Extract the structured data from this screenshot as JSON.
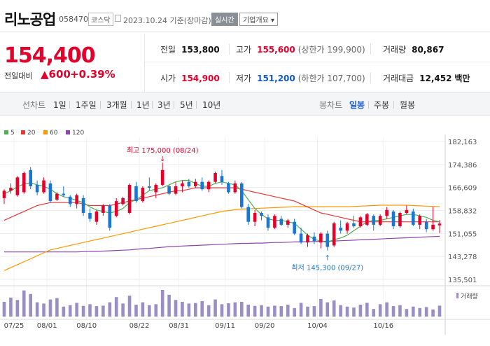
{
  "header": {
    "stock_name": "리노공업",
    "stock_code": "058470",
    "market": "코스닥",
    "date_text": "2023.10.24  기준(장마감)",
    "realtime_label": "실시간",
    "company_label": "기업개요 ▾"
  },
  "price": {
    "current": "154,400",
    "prev_label": "전일대비",
    "change": "▲600",
    "rate": "+0.39%"
  },
  "stats": {
    "prev_close": {
      "label": "전일",
      "value": "153,800"
    },
    "high": {
      "label": "고가",
      "value": "155,600",
      "sub": "(상한가 199,900)"
    },
    "volume": {
      "label": "거래량",
      "value": "80,867"
    },
    "open": {
      "label": "시가",
      "value": "154,900"
    },
    "low": {
      "label": "저가",
      "value": "151,200",
      "sub": "(하한가 107,700)"
    },
    "amount": {
      "label": "거래대금",
      "value": "12,452",
      "unit": "백만"
    }
  },
  "tabs": {
    "line_chart_label": "선차트",
    "periods": [
      "1일",
      "1주일",
      "3개월",
      "1년",
      "3년",
      "5년",
      "10년"
    ],
    "candle_chart_label": "봉차트",
    "candle_periods": [
      "일봉",
      "주봉",
      "월봉"
    ],
    "active_candle": "일봉"
  },
  "colors": {
    "up": "#e4002b",
    "down": "#1976d2",
    "ma5": "#4caf50",
    "ma20": "#e53935",
    "ma60": "#ff9800",
    "ma120": "#8e44ad",
    "volume": "#9b8ec4"
  },
  "chart_data": {
    "type": "candlestick",
    "legend": [
      {
        "name": "5",
        "color": "#4caf50"
      },
      {
        "name": "20",
        "color": "#e53935"
      },
      {
        "name": "60",
        "color": "#ff9800"
      },
      {
        "name": "120",
        "color": "#8e44ad"
      }
    ],
    "y_ticks": [
      "182,163",
      "174,386",
      "166,609",
      "158,832",
      "151,055",
      "143,278",
      "135,501"
    ],
    "ylim": [
      135501,
      182163
    ],
    "x_ticks": [
      "07/25",
      "08/01",
      "08/10",
      "08/22",
      "08/31",
      "09/11",
      "09/20",
      "10/04",
      "10/16"
    ],
    "high_annotation": "최고 175,000 (08/24)",
    "low_annotation": "최저 145,300 (09/27)",
    "volume_legend": "거래량",
    "candles": [
      [
        163000,
        166000,
        161000,
        165500
      ],
      [
        165500,
        168000,
        164500,
        166500
      ],
      [
        164000,
        170500,
        163500,
        170000
      ],
      [
        165000,
        172000,
        164500,
        171500
      ],
      [
        172500,
        173500,
        166000,
        167000
      ],
      [
        167500,
        169000,
        164000,
        165000
      ],
      [
        165000,
        170000,
        164500,
        169000
      ],
      [
        168000,
        169000,
        161500,
        162000
      ],
      [
        162500,
        165000,
        162000,
        164500
      ],
      [
        164500,
        167000,
        163500,
        164000
      ],
      [
        163500,
        164000,
        160000,
        161000
      ],
      [
        161000,
        164500,
        159500,
        164000
      ],
      [
        163000,
        164000,
        157000,
        158000
      ],
      [
        158000,
        159500,
        155000,
        156000
      ],
      [
        155000,
        159000,
        154000,
        158500
      ],
      [
        158000,
        161000,
        157000,
        160500
      ],
      [
        160500,
        161000,
        152000,
        153000
      ],
      [
        157000,
        163000,
        156500,
        162000
      ],
      [
        161000,
        163500,
        160500,
        163000
      ],
      [
        158000,
        168000,
        157500,
        167500
      ],
      [
        167000,
        168500,
        161500,
        162000
      ],
      [
        162000,
        167000,
        161500,
        166500
      ],
      [
        167000,
        170000,
        165500,
        166500
      ],
      [
        165000,
        168000,
        163000,
        167500
      ],
      [
        167500,
        175000,
        167000,
        172500
      ],
      [
        167000,
        167500,
        164000,
        164500
      ],
      [
        164500,
        168500,
        164000,
        167000
      ],
      [
        167000,
        169000,
        165000,
        168000
      ],
      [
        168500,
        169500,
        166500,
        167000
      ],
      [
        167000,
        169500,
        166500,
        168500
      ],
      [
        168500,
        170000,
        165500,
        166000
      ],
      [
        166000,
        169000,
        165000,
        168500
      ],
      [
        168500,
        172000,
        168000,
        171500
      ],
      [
        170500,
        172500,
        167500,
        168500
      ],
      [
        168000,
        168500,
        164500,
        165000
      ],
      [
        165000,
        169000,
        164500,
        168000
      ],
      [
        168000,
        168500,
        159500,
        160000
      ],
      [
        160000,
        161000,
        154000,
        155000
      ],
      [
        155000,
        159000,
        153500,
        158000
      ],
      [
        158000,
        158500,
        155500,
        157000
      ],
      [
        156500,
        157500,
        152000,
        153000
      ],
      [
        153000,
        157500,
        152500,
        157000
      ],
      [
        156000,
        157000,
        153500,
        154000
      ],
      [
        154000,
        156000,
        153000,
        155500
      ],
      [
        155000,
        156000,
        150500,
        151000
      ],
      [
        151000,
        153000,
        147500,
        148000
      ],
      [
        148000,
        151000,
        146500,
        150500
      ],
      [
        150000,
        151500,
        147500,
        148500
      ],
      [
        148000,
        151500,
        146000,
        151000
      ],
      [
        151000,
        152000,
        145300,
        146500
      ],
      [
        147000,
        155000,
        146500,
        154500
      ],
      [
        153000,
        155500,
        151000,
        152000
      ],
      [
        152000,
        155000,
        151000,
        154500
      ],
      [
        154500,
        157000,
        153000,
        153500
      ],
      [
        153500,
        157000,
        153000,
        156500
      ],
      [
        154000,
        158000,
        153500,
        157500
      ],
      [
        157000,
        157500,
        152000,
        154000
      ],
      [
        154000,
        157500,
        153500,
        157000
      ],
      [
        157000,
        160000,
        156000,
        159000
      ],
      [
        158500,
        159000,
        152500,
        153500
      ],
      [
        153500,
        158500,
        153000,
        158000
      ],
      [
        158000,
        160500,
        157500,
        159000
      ],
      [
        158500,
        159500,
        153500,
        154000
      ],
      [
        154000,
        157500,
        152500,
        157000
      ],
      [
        155000,
        156000,
        151500,
        152500
      ],
      [
        152500,
        160000,
        152000,
        154000
      ],
      [
        153800,
        155600,
        151200,
        154400
      ]
    ],
    "volumes": [
      62,
      80,
      70,
      110,
      95,
      60,
      55,
      72,
      78,
      42,
      48,
      58,
      45,
      52,
      44,
      46,
      60,
      82,
      55,
      88,
      50,
      60,
      48,
      52,
      112,
      92,
      70,
      62,
      55,
      57,
      65,
      48,
      72,
      52,
      56,
      60,
      62,
      50,
      45,
      48,
      42,
      46,
      44,
      50,
      36,
      58,
      42,
      44,
      74,
      60,
      68,
      48,
      42,
      38,
      50,
      58,
      32,
      52,
      60,
      44,
      48,
      32,
      42,
      36,
      40,
      30,
      46
    ],
    "ma5": [
      164500,
      165500,
      166800,
      167800,
      168200,
      167500,
      167000,
      166000,
      164500,
      163500,
      163000,
      162200,
      161500,
      160000,
      159000,
      158500,
      158000,
      158500,
      159500,
      161500,
      162500,
      164000,
      165500,
      166000,
      166500,
      167500,
      168500,
      169000,
      169000,
      168000,
      167000,
      167000,
      168000,
      168500,
      168000,
      167500,
      165500,
      162500,
      159500,
      157500,
      156000,
      155500,
      155500,
      155000,
      154500,
      152500,
      150500,
      149000,
      148500,
      148000,
      149000,
      149500,
      150500,
      152000,
      153500,
      155000,
      155500,
      155500,
      156000,
      156500,
      157000,
      157500,
      157500,
      157000,
      156500,
      155500,
      155000
    ],
    "ma20": [
      155500,
      156500,
      157500,
      158500,
      159500,
      160500,
      161000,
      161500,
      161500,
      161500,
      161500,
      161500,
      161000,
      160500,
      160500,
      160500,
      160500,
      161000,
      161500,
      162000,
      162500,
      163000,
      163500,
      164000,
      164500,
      165000,
      165500,
      165500,
      166000,
      166500,
      166500,
      166500,
      166500,
      166500,
      166500,
      166500,
      166000,
      165500,
      165000,
      164500,
      164000,
      163500,
      163000,
      162500,
      162000,
      161000,
      160000,
      159000,
      158000,
      157500,
      157000,
      156500,
      156000,
      155500,
      155000,
      155000,
      155000,
      155000,
      155000,
      155000,
      155000,
      155000,
      155000,
      155000,
      155000,
      155000,
      155000
    ],
    "ma60": [
      138500,
      139500,
      140500,
      141500,
      142500,
      143500,
      144500,
      145500,
      146000,
      146500,
      147000,
      147500,
      148000,
      148500,
      149000,
      149500,
      150000,
      150500,
      151000,
      151500,
      152000,
      152500,
      153000,
      153500,
      154000,
      154500,
      155000,
      155500,
      156000,
      156500,
      157000,
      157500,
      158000,
      158500,
      158800,
      159100,
      159300,
      159400,
      159500,
      159600,
      159700,
      159800,
      159900,
      160000,
      160100,
      160100,
      160100,
      160100,
      160100,
      160100,
      160100,
      160100,
      160100,
      160200,
      160300,
      160400,
      160500,
      160600,
      160600,
      160600,
      160600,
      160600,
      160500,
      160400,
      160300,
      160200,
      160100
    ],
    "ma120": [
      144800,
      144800,
      144800,
      144800,
      144800,
      144800,
      144800,
      144800,
      144800,
      144800,
      144800,
      144800,
      144900,
      145000,
      145000,
      145100,
      145200,
      145300,
      145400,
      145500,
      145700,
      145900,
      146000,
      146200,
      146400,
      146600,
      146700,
      146800,
      146900,
      147000,
      147100,
      147200,
      147300,
      147400,
      147500,
      147600,
      147700,
      147700,
      147800,
      147800,
      147900,
      148000,
      148000,
      148100,
      148200,
      148200,
      148300,
      148300,
      148400,
      148400,
      148500,
      148600,
      148700,
      148800,
      148900,
      149000,
      149100,
      149200,
      149300,
      149400,
      149500,
      149600,
      149700,
      149800,
      149900,
      150000,
      150100
    ]
  }
}
